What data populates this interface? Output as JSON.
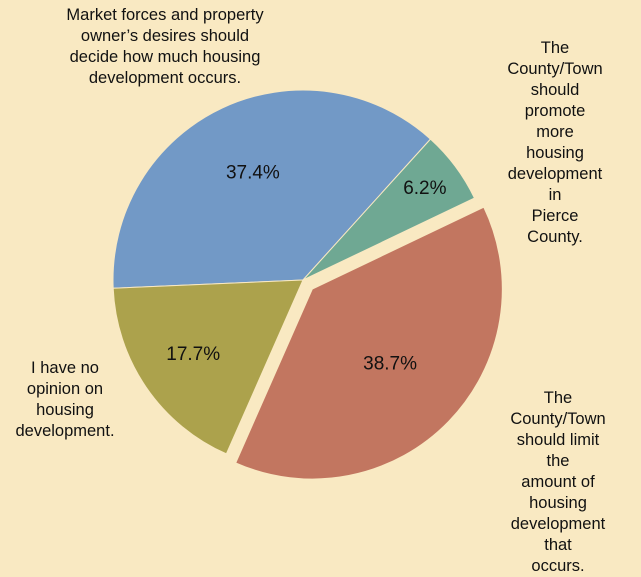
{
  "chart_data": {
    "type": "pie",
    "categories": [
      "Market forces and property\nowner’s desires should\ndecide how much housing\ndevelopment occurs.",
      "The County/Town\nshould promote\nmore housing\ndevelopment in\nPierce County.",
      "The County/Town\nshould limit the\namount of housing\ndevelopment that\noccurs.",
      "I have no\nopinion on\nhousing\ndevelopment."
    ],
    "values": [
      37.4,
      6.2,
      38.7,
      17.7
    ],
    "value_labels": [
      "37.4%",
      "6.2%",
      "38.7%",
      "17.7%"
    ],
    "colors": [
      "#7299c6",
      "#6fa893",
      "#c27660",
      "#aca24c"
    ],
    "exploded": [
      false,
      false,
      true,
      false
    ]
  }
}
